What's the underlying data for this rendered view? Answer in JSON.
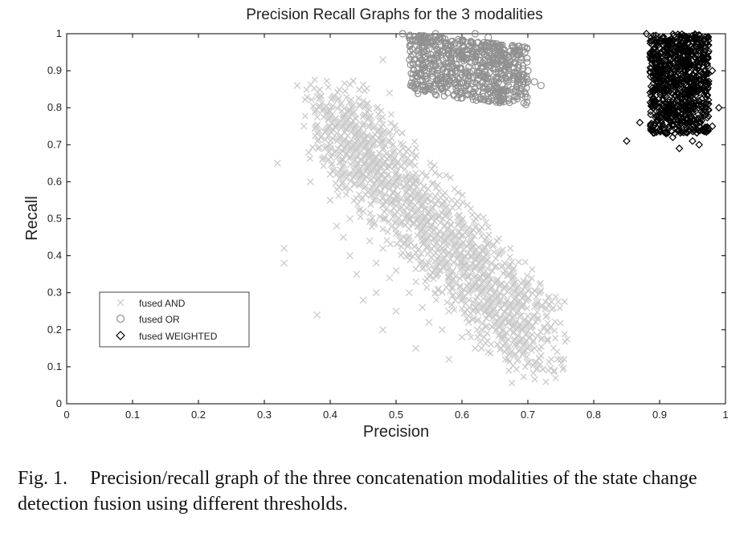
{
  "chart_data": {
    "type": "scatter",
    "title": "Precision Recall Graphs for the 3 modalities",
    "xlabel": "Precision",
    "ylabel": "Recall",
    "xlim": [
      0,
      1
    ],
    "ylim": [
      0,
      1
    ],
    "xticks": [
      "0",
      "0.1",
      "0.2",
      "0.3",
      "0.4",
      "0.5",
      "0.6",
      "0.7",
      "0.8",
      "0.9",
      "1"
    ],
    "yticks": [
      "0",
      "0.1",
      "0.2",
      "0.3",
      "0.4",
      "0.5",
      "0.6",
      "0.7",
      "0.8",
      "0.9",
      "1"
    ],
    "grid": false,
    "legend_position": "lower-left",
    "series": [
      {
        "name": "fused AND",
        "marker": "x",
        "color": "#c8c8c8",
        "approx_region": "dense band from (0.36, 0.80) to (0.75, 0.10), negatively correlated",
        "points": [
          [
            0.32,
            0.65
          ],
          [
            0.33,
            0.42
          ],
          [
            0.33,
            0.38
          ],
          [
            0.35,
            0.86
          ],
          [
            0.36,
            0.75
          ],
          [
            0.37,
            0.6
          ],
          [
            0.38,
            0.83
          ],
          [
            0.38,
            0.24
          ],
          [
            0.4,
            0.79
          ],
          [
            0.4,
            0.7
          ],
          [
            0.4,
            0.62
          ],
          [
            0.4,
            0.55
          ],
          [
            0.41,
            0.48
          ],
          [
            0.42,
            0.45
          ],
          [
            0.42,
            0.78
          ],
          [
            0.42,
            0.66
          ],
          [
            0.43,
            0.58
          ],
          [
            0.43,
            0.5
          ],
          [
            0.43,
            0.4
          ],
          [
            0.44,
            0.72
          ],
          [
            0.44,
            0.35
          ],
          [
            0.45,
            0.28
          ],
          [
            0.45,
            0.62
          ],
          [
            0.45,
            0.52
          ],
          [
            0.46,
            0.44
          ],
          [
            0.46,
            0.68
          ],
          [
            0.47,
            0.58
          ],
          [
            0.47,
            0.38
          ],
          [
            0.47,
            0.3
          ],
          [
            0.48,
            0.93
          ],
          [
            0.48,
            0.5
          ],
          [
            0.48,
            0.42
          ],
          [
            0.49,
            0.84
          ],
          [
            0.49,
            0.64
          ],
          [
            0.49,
            0.34
          ],
          [
            0.5,
            0.55
          ],
          [
            0.5,
            0.46
          ],
          [
            0.5,
            0.25
          ],
          [
            0.5,
            0.36
          ],
          [
            0.51,
            0.7
          ],
          [
            0.52,
            0.4
          ],
          [
            0.52,
            0.3
          ],
          [
            0.52,
            0.5
          ],
          [
            0.53,
            0.6
          ],
          [
            0.53,
            0.33
          ],
          [
            0.54,
            0.44
          ],
          [
            0.54,
            0.26
          ],
          [
            0.55,
            0.38
          ],
          [
            0.55,
            0.22
          ],
          [
            0.55,
            0.52
          ],
          [
            0.56,
            0.3
          ],
          [
            0.57,
            0.42
          ],
          [
            0.57,
            0.2
          ],
          [
            0.58,
            0.34
          ],
          [
            0.58,
            0.25
          ],
          [
            0.59,
            0.28
          ],
          [
            0.6,
            0.38
          ],
          [
            0.6,
            0.18
          ],
          [
            0.61,
            0.22
          ],
          [
            0.61,
            0.3
          ],
          [
            0.62,
            0.26
          ],
          [
            0.62,
            0.15
          ],
          [
            0.63,
            0.2
          ],
          [
            0.64,
            0.24
          ],
          [
            0.64,
            0.14
          ],
          [
            0.65,
            0.3
          ],
          [
            0.66,
            0.18
          ],
          [
            0.67,
            0.22
          ],
          [
            0.67,
            0.12
          ],
          [
            0.68,
            0.16
          ],
          [
            0.69,
            0.2
          ],
          [
            0.7,
            0.11
          ],
          [
            0.71,
            0.15
          ],
          [
            0.72,
            0.13
          ],
          [
            0.73,
            0.17
          ],
          [
            0.75,
            0.12
          ],
          [
            0.74,
            0.09
          ],
          [
            0.48,
            0.2
          ],
          [
            0.53,
            0.15
          ],
          [
            0.58,
            0.12
          ]
        ]
      },
      {
        "name": "fused OR",
        "marker": "circle",
        "color": "#909090",
        "approx_region": "cluster from precision 0.51–0.72, recall 0.82–1.0",
        "points": [
          [
            0.51,
            1.0
          ],
          [
            0.52,
            0.99
          ],
          [
            0.53,
            0.98
          ],
          [
            0.54,
            0.97
          ],
          [
            0.55,
            0.96
          ],
          [
            0.56,
            0.99
          ],
          [
            0.57,
            0.95
          ],
          [
            0.58,
            0.97
          ],
          [
            0.58,
            0.92
          ],
          [
            0.59,
            0.9
          ],
          [
            0.6,
            0.98
          ],
          [
            0.6,
            0.94
          ],
          [
            0.61,
            0.88
          ],
          [
            0.61,
            0.85
          ],
          [
            0.62,
            0.83
          ],
          [
            0.62,
            0.96
          ],
          [
            0.63,
            0.91
          ],
          [
            0.64,
            0.87
          ],
          [
            0.64,
            0.99
          ],
          [
            0.65,
            0.93
          ],
          [
            0.65,
            0.82
          ],
          [
            0.66,
            0.89
          ],
          [
            0.66,
            0.95
          ],
          [
            0.67,
            0.86
          ],
          [
            0.67,
            0.91
          ],
          [
            0.68,
            0.88
          ],
          [
            0.69,
            0.93
          ],
          [
            0.7,
            0.9
          ],
          [
            0.71,
            0.87
          ],
          [
            0.72,
            0.86
          ],
          [
            0.62,
            1.0
          ],
          [
            0.56,
            1.0
          ]
        ]
      },
      {
        "name": "fused WEIGHTED",
        "marker": "diamond",
        "color": "#000000",
        "approx_region": "cluster from precision 0.85–1.0, recall 0.69–1.0",
        "points": [
          [
            0.88,
            1.0
          ],
          [
            0.89,
            0.95
          ],
          [
            0.89,
            0.8
          ],
          [
            0.9,
            0.88
          ],
          [
            0.9,
            0.74
          ],
          [
            0.91,
            0.98
          ],
          [
            0.91,
            0.83
          ],
          [
            0.92,
            0.92
          ],
          [
            0.92,
            0.72
          ],
          [
            0.93,
            0.86
          ],
          [
            0.93,
            0.97
          ],
          [
            0.94,
            0.78
          ],
          [
            0.94,
            0.9
          ],
          [
            0.95,
            0.84
          ],
          [
            0.95,
            0.71
          ],
          [
            0.96,
            0.93
          ],
          [
            0.96,
            0.76
          ],
          [
            0.97,
            0.87
          ],
          [
            0.97,
            0.81
          ],
          [
            0.98,
            0.75
          ],
          [
            0.98,
            0.9
          ],
          [
            0.85,
            0.71
          ],
          [
            0.87,
            0.76
          ],
          [
            0.93,
            0.69
          ],
          [
            0.99,
            0.8
          ],
          [
            0.9,
            0.98
          ],
          [
            0.95,
            0.98
          ],
          [
            0.92,
            0.79
          ],
          [
            0.91,
            0.73
          ],
          [
            0.96,
            0.7
          ]
        ]
      }
    ]
  },
  "caption": {
    "fig_number": "Fig. 1.",
    "text": "Precision/recall graph of the three concatenation modalities of the state change detection fusion using different thresholds."
  }
}
